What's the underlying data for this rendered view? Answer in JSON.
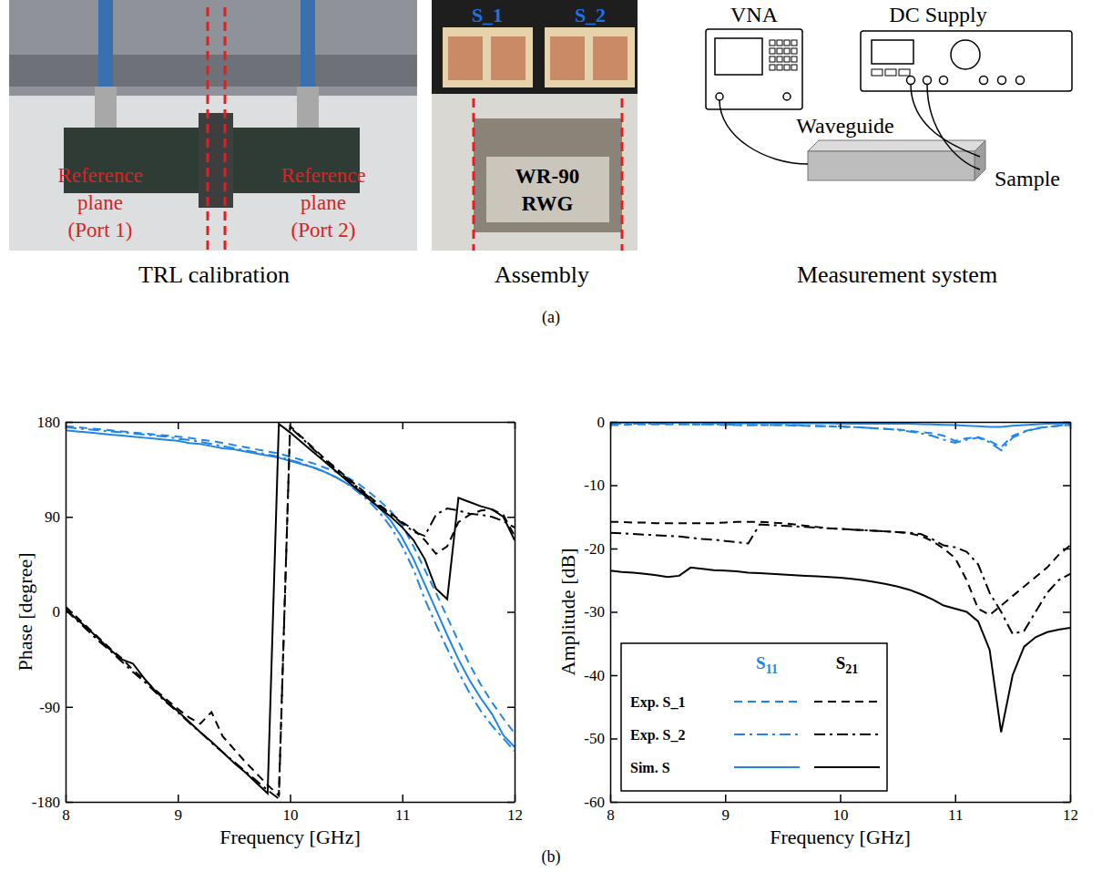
{
  "figure_a": {
    "label": "(a)",
    "captions": [
      "TRL calibration",
      "Assembly",
      "Measurement system"
    ],
    "calibration": {
      "port_labels": [
        [
          "Reference",
          "plane",
          "(Port 1)"
        ],
        [
          "Reference",
          "plane",
          "(Port 2)"
        ]
      ]
    },
    "assembly": {
      "samples": [
        "S_1",
        "S_2"
      ],
      "waveguide": [
        "WR-90",
        "RWG"
      ]
    },
    "system": {
      "vna": "VNA",
      "dc_supply": "DC Supply",
      "waveguide": "Waveguide",
      "sample": "Sample"
    }
  },
  "figure_b_label": "(b)",
  "chart_data": [
    {
      "type": "line",
      "x_label": "Frequency [GHz]",
      "y_label": "Phase [degree]",
      "xlim": [
        8,
        12
      ],
      "xticks": [
        8,
        9,
        10,
        11,
        12
      ],
      "ylim": [
        -180,
        180
      ],
      "yticks": [
        -180,
        -90,
        0,
        90,
        180
      ],
      "x": [
        8,
        8.1,
        8.2,
        8.3,
        8.4,
        8.5,
        8.6,
        8.7,
        8.8,
        8.9,
        9,
        9.1,
        9.2,
        9.3,
        9.4,
        9.5,
        9.6,
        9.7,
        9.8,
        9.9,
        10,
        10.1,
        10.2,
        10.3,
        10.4,
        10.5,
        10.6,
        10.7,
        10.8,
        10.9,
        11,
        11.1,
        11.2,
        11.3,
        11.4,
        11.5,
        11.6,
        11.7,
        11.8,
        11.9,
        12
      ],
      "groups": [
        {
          "color": "#1f86e8",
          "series": [
            {
              "line_style": "dashed",
              "values": [
                176,
                175,
                174,
                173,
                172,
                171,
                170,
                169,
                168,
                167,
                166,
                165,
                163,
                162,
                160,
                158,
                156,
                154,
                152,
                150,
                147,
                144,
                141,
                137,
                133,
                128,
                122,
                114,
                105,
                95,
                82,
                62,
                40,
                18,
                -5,
                -28,
                -50,
                -69,
                -86,
                -101,
                -115
              ]
            },
            {
              "line_style": "dashdot",
              "values": [
                175,
                174,
                173,
                172,
                171,
                170,
                169,
                168,
                167,
                166,
                164,
                163,
                161,
                159,
                157,
                155,
                153,
                151,
                149,
                147,
                144,
                141,
                137,
                133,
                128,
                122,
                114,
                105,
                94,
                80,
                62,
                40,
                12,
                -12,
                -35,
                -57,
                -77,
                -94,
                -108,
                -120,
                -132
              ]
            },
            {
              "line_style": "solid",
              "values": [
                172,
                171,
                170,
                169,
                168,
                167,
                166,
                165,
                164,
                163,
                162,
                160,
                159,
                157,
                155,
                154,
                152,
                150,
                148,
                146,
                143,
                140,
                137,
                133,
                128,
                122,
                116,
                108,
                98,
                86,
                70,
                50,
                26,
                2,
                -22,
                -45,
                -65,
                -82,
                -97,
                -117,
                -128
              ]
            }
          ]
        },
        {
          "color": "#000000",
          "series": [
            {
              "line_style": "dashed",
              "values": [
                5,
                -5,
                -15,
                -25,
                -35,
                -44,
                -55,
                -64,
                -74,
                -83,
                -92,
                -100,
                -106,
                -95,
                -118,
                -130,
                -142,
                -153,
                -164,
                -174,
                176,
                166,
                156,
                146,
                137,
                128,
                119,
                110,
                101,
                93,
                85,
                78,
                68,
                55,
                62,
                85,
                92,
                96,
                97,
                92,
                72
              ]
            },
            {
              "line_style": "dashdot",
              "values": [
                2,
                -8,
                -18,
                -28,
                -37,
                -47,
                -57,
                -66,
                -76,
                -86,
                -95,
                -105,
                -114,
                -124,
                -133,
                -142,
                -151,
                -160,
                -169,
                -177,
                175,
                165,
                155,
                145,
                136,
                127,
                118,
                109,
                100,
                92,
                84,
                76,
                72,
                92,
                98,
                96,
                93,
                92,
                90,
                86,
                80
              ]
            },
            {
              "line_style": "solid",
              "values": [
                3,
                -7,
                -16,
                -26,
                -36,
                -45,
                -49,
                -63,
                -75,
                -85,
                -94,
                -104,
                -114,
                -123,
                -133,
                -143,
                -152,
                -162,
                -172,
                178,
                170,
                161,
                152,
                143,
                134,
                125,
                116,
                107,
                98,
                90,
                80,
                68,
                50,
                22,
                12,
                108,
                104,
                100,
                97,
                90,
                68
              ]
            }
          ]
        }
      ]
    },
    {
      "type": "line",
      "x_label": "Frequency [GHz]",
      "y_label": "Amplitude [dB]",
      "xlim": [
        8,
        12
      ],
      "xticks": [
        8,
        9,
        10,
        11,
        12
      ],
      "ylim": [
        -60,
        0
      ],
      "yticks": [
        -60,
        -50,
        -40,
        -30,
        -20,
        -10,
        0
      ],
      "legend": "lower left",
      "x": [
        8,
        8.1,
        8.2,
        8.3,
        8.4,
        8.5,
        8.6,
        8.7,
        8.8,
        8.9,
        9,
        9.1,
        9.2,
        9.3,
        9.4,
        9.5,
        9.6,
        9.7,
        9.8,
        9.9,
        10,
        10.1,
        10.2,
        10.3,
        10.4,
        10.5,
        10.6,
        10.7,
        10.8,
        10.9,
        11,
        11.1,
        11.2,
        11.3,
        11.4,
        11.5,
        11.6,
        11.7,
        11.8,
        11.9,
        12
      ],
      "groups": [
        {
          "name": "S11",
          "color": "#1f86e8",
          "series": [
            {
              "name": "Exp. S_1",
              "line_style": "dashed",
              "values": [
                -0.5,
                -0.5,
                -0.4,
                -0.4,
                -0.4,
                -0.4,
                -0.4,
                -0.4,
                -0.4,
                -0.4,
                -0.5,
                -0.5,
                -0.5,
                -0.5,
                -0.5,
                -0.5,
                -0.6,
                -0.6,
                -0.7,
                -0.7,
                -0.8,
                -0.8,
                -0.9,
                -1.0,
                -1.1,
                -1.2,
                -1.4,
                -1.6,
                -1.8,
                -2.2,
                -3.0,
                -2.6,
                -2.4,
                -3.0,
                -4.0,
                -2.2,
                -1.5,
                -1.0,
                -0.8,
                -0.6,
                -0.5
              ]
            },
            {
              "name": "Exp. S_2",
              "line_style": "dashdot",
              "values": [
                -0.3,
                -0.3,
                -0.3,
                -0.3,
                -0.3,
                -0.3,
                -0.3,
                -0.4,
                -0.4,
                -0.4,
                -0.4,
                -0.5,
                -0.5,
                -0.5,
                -0.5,
                -0.5,
                -0.5,
                -0.6,
                -0.6,
                -0.7,
                -0.7,
                -0.8,
                -0.9,
                -1.0,
                -1.1,
                -1.3,
                -1.5,
                -1.8,
                -2.2,
                -2.8,
                -3.3,
                -2.8,
                -2.5,
                -3.2,
                -4.5,
                -2.5,
                -1.6,
                -1.1,
                -0.8,
                -0.6,
                -0.4
              ]
            },
            {
              "name": "Sim. S",
              "line_style": "solid",
              "values": [
                -0.1,
                -0.1,
                -0.1,
                -0.1,
                -0.1,
                -0.1,
                -0.1,
                -0.1,
                -0.1,
                -0.2,
                -0.2,
                -0.2,
                -0.2,
                -0.2,
                -0.2,
                -0.2,
                -0.2,
                -0.2,
                -0.2,
                -0.2,
                -0.3,
                -0.3,
                -0.3,
                -0.3,
                -0.3,
                -0.3,
                -0.3,
                -0.35,
                -0.4,
                -0.45,
                -0.5,
                -0.6,
                -0.7,
                -0.8,
                -0.8,
                -0.6,
                -0.5,
                -0.4,
                -0.3,
                -0.25,
                -0.2
              ]
            }
          ]
        },
        {
          "name": "S21",
          "color": "#000000",
          "series": [
            {
              "name": "Exp. S_1",
              "line_style": "dashed",
              "values": [
                -15.8,
                -15.8,
                -15.9,
                -15.9,
                -16.0,
                -16.0,
                -16.0,
                -16.0,
                -16.0,
                -16.0,
                -15.9,
                -15.8,
                -15.8,
                -15.8,
                -15.9,
                -16.0,
                -16.2,
                -16.4,
                -16.6,
                -16.8,
                -16.9,
                -17.0,
                -17.1,
                -17.2,
                -17.3,
                -17.4,
                -17.6,
                -18.0,
                -18.8,
                -20.0,
                -21.5,
                -25.0,
                -29.5,
                -30.5,
                -29.0,
                -27.5,
                -26.0,
                -24.5,
                -23.0,
                -21.0,
                -19.5
              ]
            },
            {
              "name": "Exp. S_2",
              "line_style": "dashdot",
              "values": [
                -17.5,
                -17.6,
                -17.7,
                -17.8,
                -17.9,
                -18.0,
                -18.1,
                -18.3,
                -18.5,
                -18.6,
                -18.8,
                -19.0,
                -19.2,
                -16.2,
                -16.3,
                -16.4,
                -16.5,
                -16.6,
                -16.7,
                -16.8,
                -16.9,
                -17.0,
                -17.1,
                -17.2,
                -17.3,
                -17.4,
                -17.5,
                -17.7,
                -18.5,
                -19.5,
                -19.8,
                -20.5,
                -22.5,
                -27.0,
                -30.0,
                -33.5,
                -33.0,
                -30.0,
                -27.0,
                -25.0,
                -24.0
              ]
            },
            {
              "name": "Sim. S",
              "line_style": "solid",
              "values": [
                -23.5,
                -23.7,
                -23.8,
                -24.0,
                -24.2,
                -24.5,
                -24.3,
                -23.0,
                -23.2,
                -23.4,
                -23.5,
                -23.6,
                -23.8,
                -23.9,
                -24.0,
                -24.1,
                -24.2,
                -24.3,
                -24.4,
                -24.5,
                -24.6,
                -24.8,
                -25.0,
                -25.3,
                -25.6,
                -26.0,
                -26.5,
                -27.2,
                -28.0,
                -29.0,
                -29.5,
                -30.0,
                -31.5,
                -36.0,
                -49.0,
                -40.0,
                -35.5,
                -34.0,
                -33.2,
                -32.8,
                -32.5
              ]
            }
          ]
        }
      ]
    }
  ]
}
